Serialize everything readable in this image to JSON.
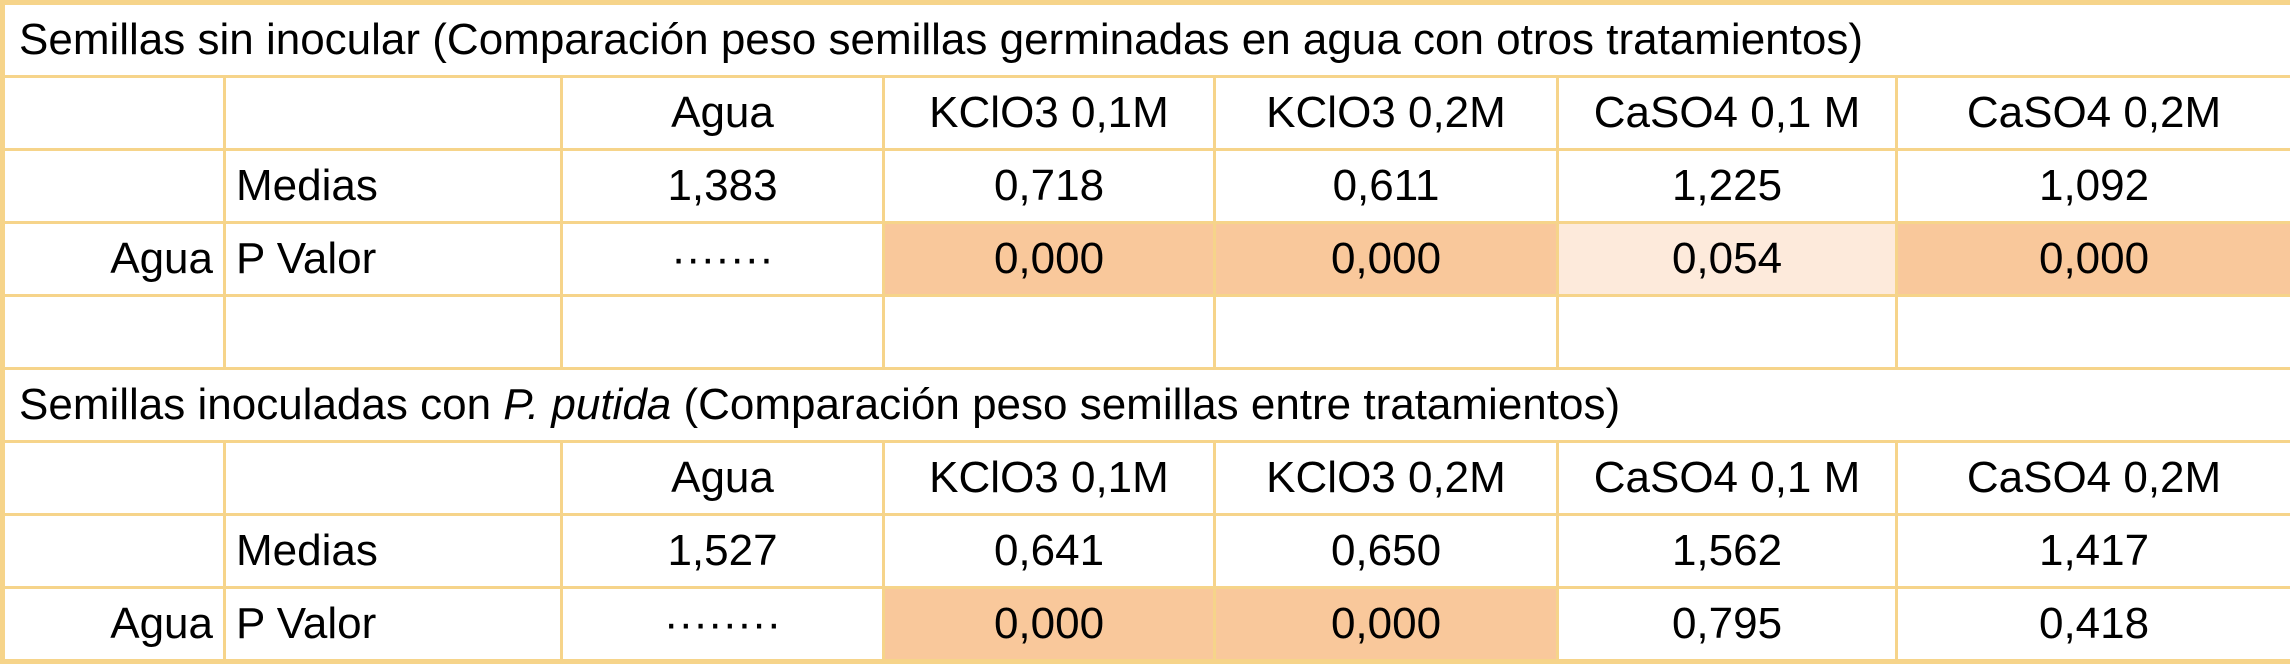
{
  "sections": [
    {
      "title_before": "Semillas sin inocular (Comparación peso semillas germinadas en agua con otros tratamientos)",
      "columns": [
        "Agua",
        "KClO3 0,1M",
        "KClO3 0,2M",
        "CaSO4 0,1 M",
        "CaSO4 0,2M"
      ],
      "means": {
        "label": "Medias",
        "values": [
          "1,383",
          "0,718",
          "0,611",
          "1,225",
          "1,092"
        ]
      },
      "p_values": {
        "group": "Agua",
        "label": "P Valor",
        "values": [
          "·······",
          "0,000",
          "0,000",
          "0,054",
          "0,000"
        ],
        "colors": [
          "#ffffff",
          "#f9c89b",
          "#f9c89b",
          "#fdeadb",
          "#f9c89b"
        ]
      },
      "blank_row": true
    },
    {
      "title_before": "Semillas inoculadas con ",
      "title_italic": "P. putida",
      "title_after": " (Comparación peso semillas entre tratamientos)",
      "columns": [
        "Agua",
        "KClO3 0,1M",
        "KClO3 0,2M",
        "CaSO4 0,1 M",
        "CaSO4 0,2M"
      ],
      "means": {
        "label": "Medias",
        "values": [
          "1,527",
          "0,641",
          "0,650",
          "1,562",
          "1,417"
        ]
      },
      "p_values": {
        "group": "Agua",
        "label": "P Valor",
        "values": [
          "········",
          "0,000",
          "0,000",
          "0,795",
          "0,418"
        ],
        "colors": [
          "#ffffff",
          "#f9c89b",
          "#f9c89b",
          "#ffffff",
          "#ffffff"
        ]
      },
      "blank_row": false
    }
  ]
}
